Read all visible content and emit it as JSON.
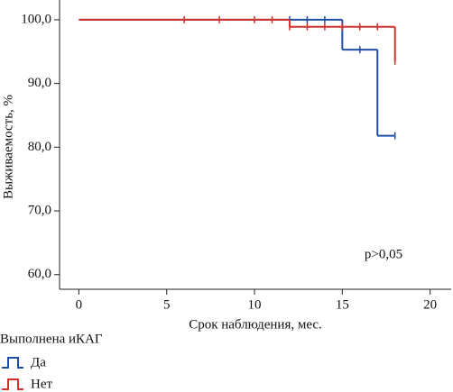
{
  "chart_data": {
    "type": "kaplan-meier",
    "xlabel": "Срок наблюдения, мес.",
    "ylabel": "Выживаемость, %",
    "annotation": "p>0,05",
    "legend_title": "Выполнена иКАГ",
    "xlim": [
      -1.1,
      21.2
    ],
    "ylim": [
      57.7,
      103.1
    ],
    "xticks": [
      0,
      5,
      10,
      15,
      20
    ],
    "yticks": [
      {
        "value": 60,
        "label": "60,0"
      },
      {
        "value": 70,
        "label": "70,0"
      },
      {
        "value": 80,
        "label": "80,0"
      },
      {
        "value": 90,
        "label": "90,0"
      },
      {
        "value": 100,
        "label": "100,0"
      }
    ],
    "series": [
      {
        "name": "Да",
        "color": "#1f4fa8",
        "x": [
          0,
          15,
          17,
          18
        ],
        "values": [
          100,
          95.3,
          81.8,
          81.8
        ],
        "censor_x": [
          12,
          13,
          14,
          16,
          18
        ],
        "censor_values": [
          100,
          100,
          100,
          95.3,
          81.8
        ]
      },
      {
        "name": "Нет",
        "color": "#d2322d",
        "x": [
          0,
          12,
          18
        ],
        "values": [
          100,
          98.9,
          93.5
        ],
        "censor_x": [
          6,
          8,
          10,
          11,
          12,
          13,
          14,
          15,
          16,
          17,
          18
        ],
        "censor_values": [
          100,
          100,
          100,
          100,
          98.9,
          98.9,
          98.9,
          98.9,
          98.9,
          98.9,
          93.5
        ]
      }
    ]
  }
}
